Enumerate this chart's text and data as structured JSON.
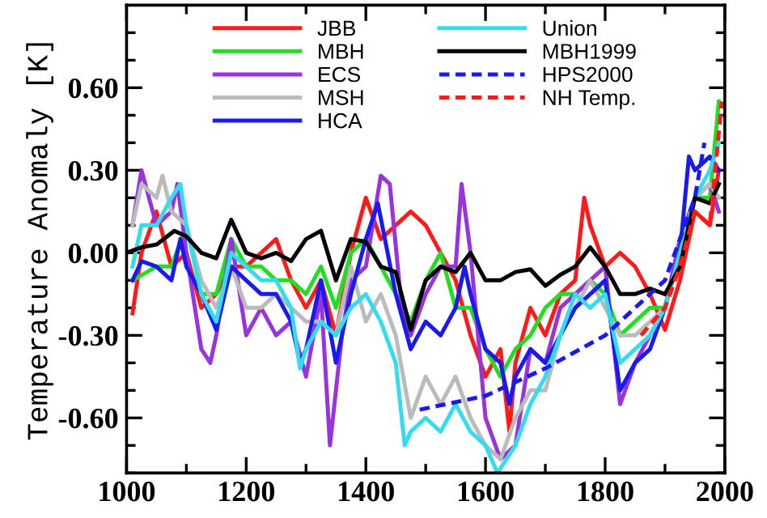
{
  "chart_data": {
    "type": "line",
    "ylabel": "Temperature Anomaly [K]",
    "xlim": [
      1000,
      2000
    ],
    "ylim": [
      -0.8,
      0.9
    ],
    "xticks": [
      1000,
      {
        "value": 1100,
        "label": null
      },
      1200,
      {
        "value": 1300,
        "label": null
      },
      1400,
      {
        "value": 1500,
        "label": null
      },
      1600,
      {
        "value": 1700,
        "label": null
      },
      1800,
      {
        "value": 1900,
        "label": null
      },
      2000
    ],
    "yticks": [
      {
        "value": -0.8,
        "label": null
      },
      {
        "value": -0.7,
        "label": null
      },
      {
        "value": -0.6,
        "label": "-0.60"
      },
      {
        "value": -0.5,
        "label": null
      },
      {
        "value": -0.4,
        "label": null
      },
      {
        "value": -0.3,
        "label": "-0.30"
      },
      {
        "value": -0.2,
        "label": null
      },
      {
        "value": -0.1,
        "label": null
      },
      {
        "value": 0,
        "label": "0.00"
      },
      {
        "value": 0.1,
        "label": null
      },
      {
        "value": 0.2,
        "label": null
      },
      {
        "value": 0.3,
        "label": "0.30"
      },
      {
        "value": 0.4,
        "label": null
      },
      {
        "value": 0.5,
        "label": null
      },
      {
        "value": 0.6,
        "label": "0.60"
      },
      {
        "value": 0.7,
        "label": null
      },
      {
        "value": 0.8,
        "label": null
      }
    ],
    "grid": false,
    "legend": "top",
    "marker": "none",
    "series": [
      {
        "name": "JBB",
        "color": "#ff1a1a",
        "line_style": "solid",
        "x": [
          1010,
          1025,
          1050,
          1075,
          1100,
          1125,
          1150,
          1175,
          1200,
          1225,
          1250,
          1275,
          1300,
          1325,
          1350,
          1375,
          1400,
          1425,
          1450,
          1475,
          1500,
          1525,
          1550,
          1575,
          1600,
          1625,
          1640,
          1650,
          1675,
          1700,
          1725,
          1750,
          1765,
          1775,
          1800,
          1825,
          1850,
          1875,
          1900,
          1925,
          1950,
          1975,
          1990
        ],
        "values": [
          -0.22,
          0.0,
          0.15,
          -0.05,
          0.0,
          -0.2,
          -0.15,
          -0.05,
          -0.05,
          0.0,
          0.05,
          -0.1,
          -0.2,
          -0.1,
          -0.3,
          0.0,
          0.2,
          0.05,
          0.1,
          0.15,
          0.1,
          0.0,
          -0.1,
          -0.3,
          -0.45,
          -0.35,
          -0.65,
          -0.4,
          -0.2,
          -0.3,
          -0.15,
          -0.1,
          0.2,
          0.1,
          -0.05,
          0.0,
          -0.05,
          -0.15,
          -0.28,
          -0.1,
          0.15,
          0.1,
          0.3
        ]
      },
      {
        "name": "MBH",
        "color": "#22dd22",
        "line_style": "solid",
        "x": [
          1010,
          1050,
          1075,
          1100,
          1125,
          1150,
          1175,
          1200,
          1225,
          1250,
          1275,
          1300,
          1325,
          1350,
          1375,
          1400,
          1425,
          1450,
          1475,
          1500,
          1525,
          1550,
          1575,
          1600,
          1625,
          1650,
          1675,
          1700,
          1725,
          1750,
          1775,
          1800,
          1825,
          1850,
          1875,
          1900,
          1925,
          1950,
          1975,
          1990
        ],
        "values": [
          -0.1,
          -0.05,
          -0.05,
          0.1,
          -0.15,
          -0.15,
          0.05,
          -0.05,
          -0.05,
          -0.1,
          -0.1,
          -0.15,
          -0.05,
          -0.2,
          0.0,
          0.05,
          -0.05,
          -0.15,
          -0.25,
          -0.1,
          0.0,
          -0.2,
          -0.2,
          -0.35,
          -0.45,
          -0.35,
          -0.3,
          -0.2,
          -0.15,
          -0.15,
          -0.1,
          -0.15,
          -0.3,
          -0.25,
          -0.2,
          -0.2,
          0.0,
          0.2,
          0.2,
          0.55
        ]
      },
      {
        "name": "ECS",
        "color": "#9933dd",
        "line_style": "solid",
        "x": [
          1010,
          1025,
          1050,
          1075,
          1085,
          1100,
          1125,
          1140,
          1150,
          1175,
          1200,
          1225,
          1250,
          1275,
          1300,
          1325,
          1340,
          1360,
          1375,
          1400,
          1425,
          1440,
          1460,
          1475,
          1500,
          1525,
          1550,
          1560,
          1575,
          1600,
          1625,
          1650,
          1675,
          1700,
          1725,
          1750,
          1775,
          1800,
          1825,
          1850,
          1875,
          1900,
          1925,
          1950,
          1975,
          1990
        ],
        "values": [
          0.1,
          0.3,
          0.1,
          0.15,
          0.25,
          0.0,
          -0.35,
          -0.4,
          -0.3,
          0.05,
          -0.3,
          -0.2,
          -0.3,
          -0.25,
          -0.45,
          -0.15,
          -0.7,
          -0.3,
          -0.1,
          -0.05,
          0.28,
          0.25,
          -0.2,
          -0.3,
          -0.15,
          -0.05,
          -0.05,
          0.25,
          0.0,
          -0.6,
          -0.75,
          -0.7,
          -0.35,
          -0.4,
          -0.2,
          -0.15,
          -0.1,
          -0.05,
          -0.55,
          -0.4,
          -0.3,
          -0.2,
          0.05,
          0.2,
          0.25,
          0.15
        ]
      },
      {
        "name": "MSH",
        "color": "#bbbbbb",
        "line_style": "solid",
        "x": [
          1010,
          1025,
          1050,
          1060,
          1075,
          1100,
          1125,
          1150,
          1175,
          1200,
          1225,
          1250,
          1275,
          1300,
          1325,
          1350,
          1375,
          1400,
          1425,
          1450,
          1475,
          1500,
          1525,
          1550,
          1575,
          1600,
          1625,
          1650,
          1675,
          1700,
          1725,
          1750,
          1775,
          1800,
          1825,
          1850,
          1875,
          1900,
          1925,
          1950,
          1975,
          1990
        ],
        "values": [
          0.1,
          0.25,
          0.2,
          0.28,
          0.15,
          0.1,
          -0.1,
          -0.2,
          -0.05,
          -0.2,
          -0.2,
          -0.15,
          -0.2,
          -0.25,
          -0.25,
          -0.3,
          -0.05,
          -0.25,
          -0.15,
          -0.3,
          -0.6,
          -0.45,
          -0.55,
          -0.45,
          -0.6,
          -0.7,
          -0.75,
          -0.6,
          -0.5,
          -0.5,
          -0.3,
          -0.2,
          -0.1,
          -0.2,
          -0.3,
          -0.3,
          -0.25,
          -0.2,
          0.0,
          0.2,
          0.25,
          0.2
        ]
      },
      {
        "name": "HCA",
        "color": "#1a1aee",
        "line_style": "solid",
        "x": [
          1010,
          1025,
          1050,
          1075,
          1090,
          1100,
          1125,
          1150,
          1175,
          1200,
          1225,
          1250,
          1275,
          1290,
          1300,
          1325,
          1350,
          1375,
          1400,
          1420,
          1450,
          1475,
          1500,
          1525,
          1550,
          1565,
          1575,
          1600,
          1625,
          1640,
          1650,
          1675,
          1700,
          1725,
          1750,
          1775,
          1800,
          1825,
          1850,
          1875,
          1900,
          1925,
          1940,
          1950,
          1975,
          1990
        ],
        "values": [
          -0.1,
          -0.03,
          -0.05,
          -0.1,
          0.05,
          -0.05,
          -0.15,
          -0.28,
          -0.05,
          -0.1,
          -0.15,
          -0.15,
          -0.25,
          -0.4,
          -0.35,
          -0.1,
          -0.4,
          -0.15,
          0.05,
          0.18,
          -0.15,
          -0.35,
          -0.25,
          -0.3,
          -0.2,
          -0.05,
          -0.15,
          -0.35,
          -0.4,
          -0.55,
          -0.45,
          -0.35,
          -0.4,
          -0.3,
          -0.2,
          -0.15,
          -0.1,
          -0.5,
          -0.4,
          -0.35,
          -0.2,
          0.0,
          0.35,
          0.3,
          0.35,
          0.3
        ]
      },
      {
        "name": "Union",
        "color": "#33ddee",
        "line_style": "solid",
        "x": [
          1010,
          1025,
          1050,
          1075,
          1090,
          1100,
          1125,
          1150,
          1175,
          1200,
          1225,
          1250,
          1275,
          1290,
          1300,
          1325,
          1350,
          1375,
          1400,
          1425,
          1450,
          1465,
          1475,
          1500,
          1525,
          1550,
          1575,
          1600,
          1620,
          1650,
          1675,
          1700,
          1725,
          1750,
          1775,
          1800,
          1825,
          1850,
          1875,
          1900,
          1925,
          1950,
          1975,
          1990
        ],
        "values": [
          -0.05,
          0.1,
          0.1,
          0.2,
          0.25,
          0.1,
          -0.15,
          -0.25,
          0.0,
          -0.05,
          -0.1,
          -0.1,
          -0.2,
          -0.42,
          -0.35,
          -0.25,
          -0.3,
          -0.2,
          -0.15,
          -0.25,
          -0.4,
          -0.7,
          -0.65,
          -0.6,
          -0.65,
          -0.55,
          -0.65,
          -0.7,
          -0.8,
          -0.7,
          -0.55,
          -0.45,
          -0.3,
          -0.15,
          -0.2,
          -0.15,
          -0.4,
          -0.35,
          -0.3,
          -0.2,
          0.0,
          0.2,
          0.3,
          0.4
        ]
      },
      {
        "name": "MBH1999",
        "color": "#000000",
        "line_style": "solid",
        "x": [
          1000,
          1025,
          1050,
          1080,
          1100,
          1125,
          1150,
          1175,
          1200,
          1225,
          1250,
          1275,
          1300,
          1325,
          1350,
          1375,
          1400,
          1425,
          1450,
          1475,
          1500,
          1525,
          1550,
          1575,
          1600,
          1625,
          1650,
          1675,
          1700,
          1725,
          1750,
          1775,
          1800,
          1825,
          1850,
          1875,
          1900,
          1925,
          1950,
          1975,
          1990
        ],
        "values": [
          0.0,
          0.02,
          0.03,
          0.08,
          0.06,
          0.0,
          -0.02,
          0.12,
          0.0,
          -0.02,
          0.0,
          -0.03,
          0.05,
          0.08,
          -0.1,
          0.05,
          0.04,
          -0.05,
          -0.07,
          -0.28,
          -0.1,
          -0.05,
          -0.07,
          0.0,
          -0.1,
          -0.1,
          -0.07,
          -0.06,
          -0.12,
          -0.08,
          -0.05,
          0.02,
          -0.05,
          -0.15,
          -0.15,
          -0.13,
          -0.15,
          -0.05,
          0.2,
          0.18,
          0.25
        ]
      },
      {
        "name": "HPS2000",
        "color": "#1a1aee",
        "line_style": "dashed",
        "x": [
          1490,
          1600,
          1700,
          1800,
          1900,
          1950,
          1966
        ],
        "values": [
          -0.57,
          -0.52,
          -0.42,
          -0.3,
          -0.1,
          0.2,
          0.4
        ]
      },
      {
        "name": "NH Temp.",
        "color": "#ff1a1a",
        "line_style": "dashed",
        "x": [
          1860,
          1900,
          1925,
          1950,
          1975,
          1995
        ],
        "values": [
          -0.3,
          -0.2,
          -0.05,
          0.15,
          0.1,
          0.55
        ]
      }
    ]
  }
}
